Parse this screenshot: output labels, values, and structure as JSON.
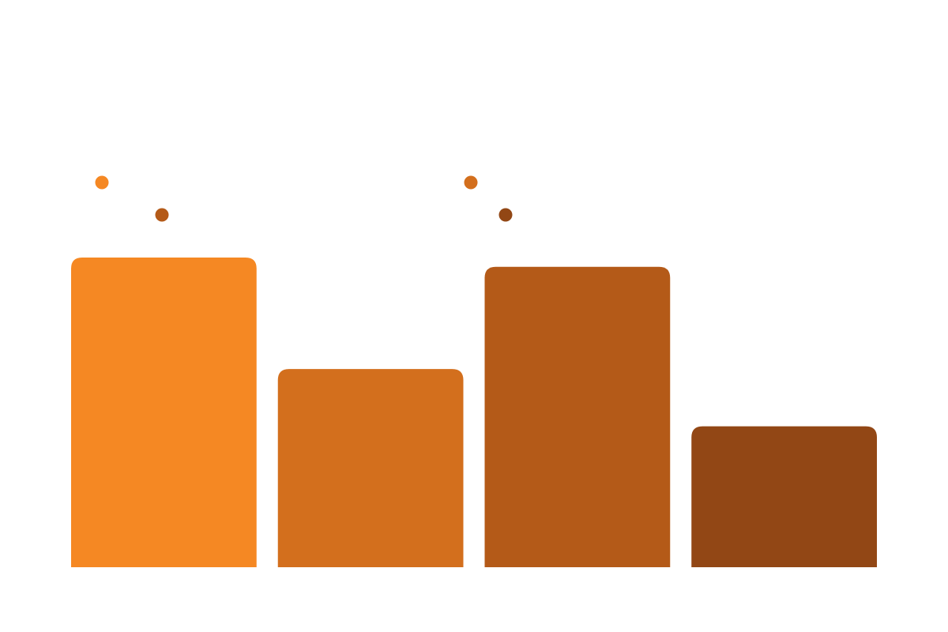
{
  "chart_data": {
    "type": "bar",
    "title": "",
    "xlabel": "",
    "ylabel": "",
    "ylim": [
      0,
      100
    ],
    "grid": false,
    "legend": "top-left",
    "categories": [
      "",
      "",
      "",
      ""
    ],
    "values": [
      100,
      64,
      97,
      45.5
    ],
    "colors": [
      "#f58823",
      "#d36f1d",
      "#b45a18",
      "#924715"
    ],
    "legend_entries": [
      {
        "label": "",
        "color": "#f58823"
      },
      {
        "label": "",
        "color": "#b45a18"
      },
      {
        "label": "",
        "color": "#d36f1d"
      },
      {
        "label": "",
        "color": "#924715"
      }
    ]
  }
}
